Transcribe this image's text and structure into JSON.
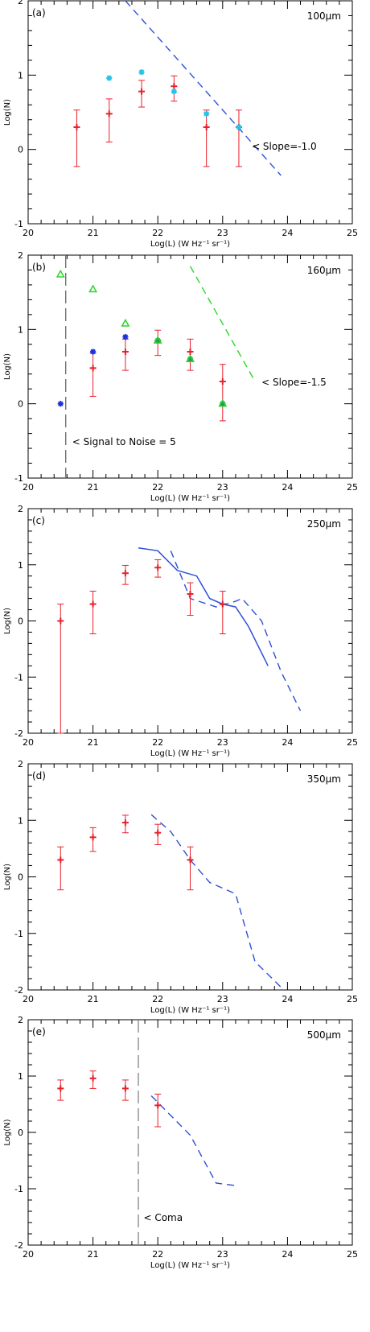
{
  "chart_data": [
    {
      "type": "scatter",
      "panel_label": "(a)",
      "wavelength": "100μm",
      "xlabel": "Log(L) (W Hz⁻¹ sr⁻¹)",
      "ylabel": "Log(N)",
      "xlim": [
        20,
        25
      ],
      "ylim": [
        -1,
        2
      ],
      "xticks": [
        20,
        21,
        22,
        23,
        24,
        25
      ],
      "yticks": [
        -1,
        0,
        1,
        2
      ],
      "series": [
        {
          "marker": "plus",
          "color": "#e8202a",
          "points": [
            {
              "x": 20.75,
              "y": 0.3,
              "lo": -0.23,
              "hi": 0.53
            },
            {
              "x": 21.25,
              "y": 0.48,
              "lo": 0.1,
              "hi": 0.68
            },
            {
              "x": 21.75,
              "y": 0.78,
              "lo": 0.57,
              "hi": 0.93
            },
            {
              "x": 22.25,
              "y": 0.85,
              "lo": 0.65,
              "hi": 0.99
            },
            {
              "x": 22.75,
              "y": 0.3,
              "lo": -0.23,
              "hi": 0.53
            },
            {
              "x": 23.25,
              "y": 0.3,
              "lo": -0.23,
              "hi": 0.53
            }
          ]
        },
        {
          "marker": "asterisk",
          "color": "#22c4ea",
          "points": [
            {
              "x": 21.25,
              "y": 0.96
            },
            {
              "x": 21.75,
              "y": 1.04
            },
            {
              "x": 22.25,
              "y": 0.78
            },
            {
              "x": 22.75,
              "y": 0.48
            },
            {
              "x": 23.25,
              "y": 0.3
            }
          ]
        }
      ],
      "lines": [
        {
          "color": "#2f4fd8",
          "dash": "dashed",
          "points": [
            [
              21.5,
              2.0
            ],
            [
              23.9,
              -0.35
            ]
          ]
        }
      ],
      "annotations": [
        {
          "text": "< Slope=-1.0",
          "x": 23.45,
          "y": 0.05
        }
      ]
    },
    {
      "type": "scatter",
      "panel_label": "(b)",
      "wavelength": "160μm",
      "xlabel": "Log(L) (W Hz⁻¹ sr⁻¹)",
      "ylabel": "Log(N)",
      "xlim": [
        20,
        25
      ],
      "ylim": [
        -1,
        2
      ],
      "xticks": [
        20,
        21,
        22,
        23,
        24,
        25
      ],
      "yticks": [
        -1,
        0,
        1,
        2
      ],
      "series": [
        {
          "marker": "plus",
          "color": "#e8202a",
          "points": [
            {
              "x": 21.0,
              "y": 0.48,
              "lo": 0.1,
              "hi": 0.68
            },
            {
              "x": 21.5,
              "y": 0.7,
              "lo": 0.45,
              "hi": 0.87
            },
            {
              "x": 22.0,
              "y": 0.85,
              "lo": 0.65,
              "hi": 0.99
            },
            {
              "x": 22.5,
              "y": 0.7,
              "lo": 0.45,
              "hi": 0.87
            },
            {
              "x": 23.0,
              "y": 0.3,
              "lo": -0.23,
              "hi": 0.53
            }
          ]
        },
        {
          "marker": "asterisk",
          "color": "#1a2fe0",
          "points": [
            {
              "x": 20.5,
              "y": 0.0
            },
            {
              "x": 21.0,
              "y": 0.7
            },
            {
              "x": 21.5,
              "y": 0.9
            },
            {
              "x": 22.0,
              "y": 0.85
            },
            {
              "x": 22.5,
              "y": 0.6
            },
            {
              "x": 23.0,
              "y": 0.0
            }
          ]
        },
        {
          "marker": "asterisk",
          "color": "#1a9e5a",
          "points": [
            {
              "x": 22.0,
              "y": 0.85
            },
            {
              "x": 22.5,
              "y": 0.6
            },
            {
              "x": 23.0,
              "y": 0.0
            }
          ]
        },
        {
          "marker": "triangle",
          "color": "#2bd62b",
          "points": [
            {
              "x": 20.5,
              "y": 1.74
            },
            {
              "x": 21.0,
              "y": 1.54
            },
            {
              "x": 21.5,
              "y": 1.08
            },
            {
              "x": 22.0,
              "y": 0.85
            },
            {
              "x": 22.5,
              "y": 0.6
            },
            {
              "x": 23.0,
              "y": 0.0
            }
          ]
        }
      ],
      "lines": [
        {
          "color": "#2bd62b",
          "dash": "dashed",
          "points": [
            [
              22.5,
              1.85
            ],
            [
              23.5,
              0.3
            ]
          ]
        },
        {
          "color": "#707070",
          "dash": "longdash",
          "points": [
            [
              20.58,
              2.0
            ],
            [
              20.58,
              -1.0
            ]
          ]
        }
      ],
      "annotations": [
        {
          "text": "< Slope=-1.5",
          "x": 23.6,
          "y": 0.3
        },
        {
          "text": "< Signal to Noise = 5",
          "x": 20.68,
          "y": -0.5
        }
      ]
    },
    {
      "type": "line",
      "panel_label": "(c)",
      "wavelength": "250μm",
      "xlabel": "Log(L) (W Hz⁻¹ sr⁻¹)",
      "ylabel": "Log(N)",
      "xlim": [
        20,
        25
      ],
      "ylim": [
        -2,
        2
      ],
      "xticks": [
        20,
        21,
        22,
        23,
        24,
        25
      ],
      "yticks": [
        -2,
        -1,
        0,
        1,
        2
      ],
      "series": [
        {
          "marker": "plus",
          "color": "#e8202a",
          "points": [
            {
              "x": 20.5,
              "y": 0.0,
              "lo": -2.0,
              "hi": 0.3
            },
            {
              "x": 21.0,
              "y": 0.3,
              "lo": -0.23,
              "hi": 0.53
            },
            {
              "x": 21.5,
              "y": 0.85,
              "lo": 0.65,
              "hi": 0.99
            },
            {
              "x": 22.0,
              "y": 0.95,
              "lo": 0.78,
              "hi": 1.09
            },
            {
              "x": 22.5,
              "y": 0.48,
              "lo": 0.1,
              "hi": 0.68
            },
            {
              "x": 23.0,
              "y": 0.3,
              "lo": -0.23,
              "hi": 0.53
            }
          ]
        }
      ],
      "lines": [
        {
          "color": "#2f4fd8",
          "dash": "solid",
          "points": [
            [
              21.7,
              1.3
            ],
            [
              22.0,
              1.25
            ],
            [
              22.3,
              0.9
            ],
            [
              22.6,
              0.8
            ],
            [
              22.8,
              0.4
            ],
            [
              23.0,
              0.3
            ],
            [
              23.2,
              0.25
            ],
            [
              23.4,
              -0.1
            ],
            [
              23.7,
              -0.8
            ]
          ]
        },
        {
          "color": "#2f4fd8",
          "dash": "dashed",
          "points": [
            [
              22.2,
              1.25
            ],
            [
              22.5,
              0.4
            ],
            [
              22.9,
              0.25
            ],
            [
              23.2,
              0.35
            ],
            [
              23.3,
              0.4
            ],
            [
              23.6,
              0.0
            ],
            [
              23.9,
              -0.9
            ],
            [
              24.2,
              -1.6
            ]
          ]
        }
      ],
      "annotations": []
    },
    {
      "type": "line",
      "panel_label": "(d)",
      "wavelength": "350μm",
      "xlabel": "Log(L) (W Hz⁻¹ sr⁻¹)",
      "ylabel": "Log(N)",
      "xlim": [
        20,
        25
      ],
      "ylim": [
        -2,
        2
      ],
      "xticks": [
        20,
        21,
        22,
        23,
        24,
        25
      ],
      "yticks": [
        -2,
        -1,
        0,
        1,
        2
      ],
      "series": [
        {
          "marker": "plus",
          "color": "#e8202a",
          "points": [
            {
              "x": 20.5,
              "y": 0.3,
              "lo": -0.23,
              "hi": 0.53
            },
            {
              "x": 21.0,
              "y": 0.7,
              "lo": 0.45,
              "hi": 0.87
            },
            {
              "x": 21.5,
              "y": 0.96,
              "lo": 0.78,
              "hi": 1.09
            },
            {
              "x": 22.0,
              "y": 0.78,
              "lo": 0.57,
              "hi": 0.93
            },
            {
              "x": 22.5,
              "y": 0.3,
              "lo": -0.23,
              "hi": 0.53
            }
          ]
        }
      ],
      "lines": [
        {
          "color": "#2f4fd8",
          "dash": "dashed",
          "points": [
            [
              21.9,
              1.1
            ],
            [
              22.2,
              0.8
            ],
            [
              22.5,
              0.3
            ],
            [
              22.8,
              -0.1
            ],
            [
              23.2,
              -0.3
            ],
            [
              23.5,
              -1.5
            ],
            [
              23.9,
              -1.95
            ]
          ]
        }
      ],
      "annotations": []
    },
    {
      "type": "line",
      "panel_label": "(e)",
      "wavelength": "500μm",
      "xlabel": "Log(L) (W Hz⁻¹ sr⁻¹)",
      "ylabel": "Log(N)",
      "xlim": [
        20,
        25
      ],
      "ylim": [
        -2,
        2
      ],
      "xticks": [
        20,
        21,
        22,
        23,
        24,
        25
      ],
      "yticks": [
        -2,
        -1,
        0,
        1,
        2
      ],
      "series": [
        {
          "marker": "plus",
          "color": "#e8202a",
          "points": [
            {
              "x": 20.5,
              "y": 0.78,
              "lo": 0.57,
              "hi": 0.93
            },
            {
              "x": 21.0,
              "y": 0.96,
              "lo": 0.78,
              "hi": 1.09
            },
            {
              "x": 21.5,
              "y": 0.78,
              "lo": 0.57,
              "hi": 0.93
            },
            {
              "x": 22.0,
              "y": 0.48,
              "lo": 0.1,
              "hi": 0.68
            }
          ]
        }
      ],
      "lines": [
        {
          "color": "#2f4fd8",
          "dash": "dashed",
          "points": [
            [
              21.9,
              0.65
            ],
            [
              22.2,
              0.3
            ],
            [
              22.5,
              -0.05
            ],
            [
              22.9,
              -0.9
            ],
            [
              23.25,
              -0.95
            ]
          ]
        },
        {
          "color": "#8c8c8c",
          "dash": "longdash",
          "points": [
            [
              21.7,
              2.0
            ],
            [
              21.7,
              -2.0
            ]
          ]
        }
      ],
      "annotations": [
        {
          "text": "< Coma",
          "x": 21.78,
          "y": -1.5
        }
      ]
    }
  ]
}
